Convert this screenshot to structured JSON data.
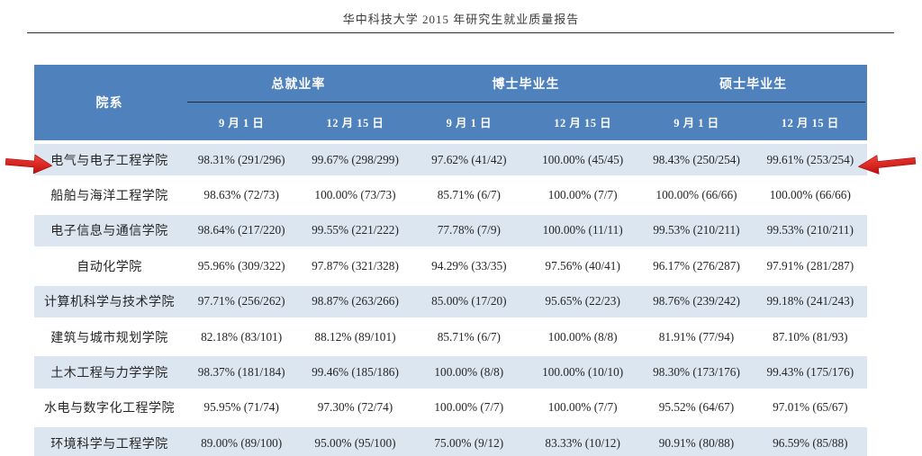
{
  "page": {
    "header_title": "华中科技大学 2015 年研究生就业质量报告"
  },
  "colors": {
    "header_bg": "#4f81bd",
    "band_row_bg": "#dce6f1",
    "header_text": "#ffffff",
    "body_text": "#262626",
    "arrow_red": "#e01f1f",
    "rule_color": "#2e2e2e"
  },
  "table": {
    "department_header": "院系",
    "groups": [
      {
        "label": "总就业率"
      },
      {
        "label": "博士毕业生"
      },
      {
        "label": "硕士毕业生"
      }
    ],
    "sub_headers": [
      "9 月 1 日",
      "12 月 15 日",
      "9 月 1 日",
      "12 月 15 日",
      "9 月 1 日",
      "12 月 15 日"
    ],
    "rows": [
      {
        "department": "电气与电子工程学院",
        "values": [
          "98.31% (291/296)",
          "99.67% (298/299)",
          "97.62% (41/42)",
          "100.00% (45/45)",
          "98.43% (250/254)",
          "99.61% (253/254)"
        ],
        "highlighted": true
      },
      {
        "department": "船舶与海洋工程学院",
        "values": [
          "98.63% (72/73)",
          "100.00% (73/73)",
          "85.71% (6/7)",
          "100.00% (7/7)",
          "100.00% (66/66)",
          "100.00% (66/66)"
        ],
        "highlighted": false
      },
      {
        "department": "电子信息与通信学院",
        "values": [
          "98.64% (217/220)",
          "99.55% (221/222)",
          "77.78% (7/9)",
          "100.00% (11/11)",
          "99.53% (210/211)",
          "99.53% (210/211)"
        ],
        "highlighted": false
      },
      {
        "department": "自动化学院",
        "values": [
          "95.96% (309/322)",
          "97.87% (321/328)",
          "94.29% (33/35)",
          "97.56% (40/41)",
          "96.17% (276/287)",
          "97.91% (281/287)"
        ],
        "highlighted": false
      },
      {
        "department": "计算机科学与技术学院",
        "values": [
          "97.71% (256/262)",
          "98.87% (263/266)",
          "85.00% (17/20)",
          "95.65% (22/23)",
          "98.76% (239/242)",
          "99.18% (241/243)"
        ],
        "highlighted": false
      },
      {
        "department": "建筑与城市规划学院",
        "values": [
          "82.18% (83/101)",
          "88.12% (89/101)",
          "85.71% (6/7)",
          "100.00% (8/8)",
          "81.91% (77/94)",
          "87.10% (81/93)"
        ],
        "highlighted": false
      },
      {
        "department": "土木工程与力学学院",
        "values": [
          "98.37% (181/184)",
          "99.46% (185/186)",
          "100.00% (8/8)",
          "100.00% (10/10)",
          "98.30% (173/176)",
          "99.43% (175/176)"
        ],
        "highlighted": false
      },
      {
        "department": "水电与数字化工程学院",
        "values": [
          "95.95% (71/74)",
          "97.30% (72/74)",
          "100.00% (7/7)",
          "100.00% (7/7)",
          "95.52% (64/67)",
          "97.01% (65/67)"
        ],
        "highlighted": false
      },
      {
        "department": "环境科学与工程学院",
        "values": [
          "89.00% (89/100)",
          "95.00% (95/100)",
          "75.00% (9/12)",
          "83.33% (10/12)",
          "90.91% (80/88)",
          "96.59% (85/88)"
        ],
        "highlighted": false
      }
    ]
  }
}
